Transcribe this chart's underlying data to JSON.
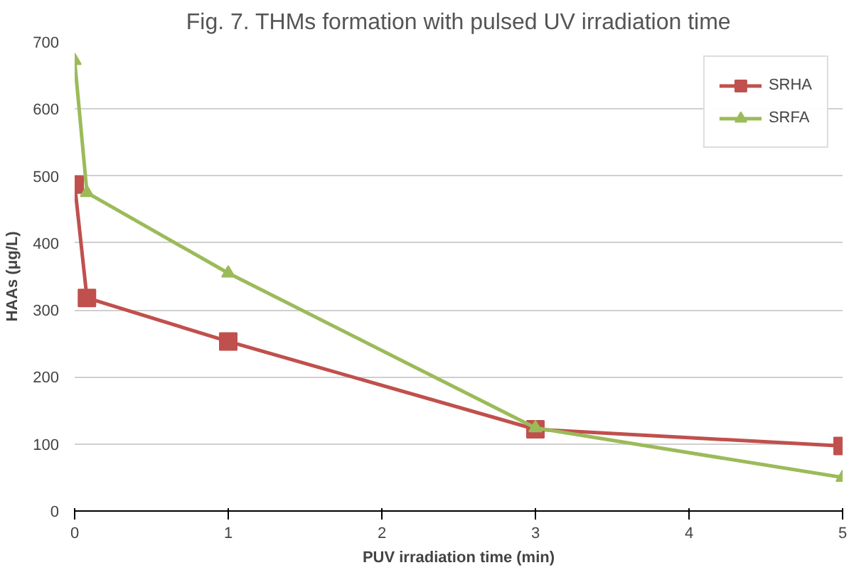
{
  "chart_data": {
    "type": "line",
    "title": "Fig. 7. THMs formation with pulsed UV irradiation time",
    "xlabel": "PUV irradiation time (min)",
    "ylabel": "HAAs (μg/L)",
    "x": [
      0,
      0.08,
      1,
      3,
      5
    ],
    "series": [
      {
        "name": "SRHA",
        "color": "#c0504d",
        "marker": "square",
        "values": [
          487,
          318,
          253,
          122,
          97
        ]
      },
      {
        "name": "SRFA",
        "color": "#9bbb59",
        "marker": "triangle",
        "values": [
          672,
          475,
          355,
          124,
          50
        ]
      }
    ],
    "xlim": [
      0,
      5
    ],
    "xticks": [
      0,
      1,
      2,
      3,
      4,
      5
    ],
    "ylim": [
      0,
      700
    ],
    "yticks": [
      0,
      100,
      200,
      300,
      400,
      500,
      600,
      700
    ],
    "grid": "y",
    "legend": "top right",
    "line_style": "solid"
  }
}
